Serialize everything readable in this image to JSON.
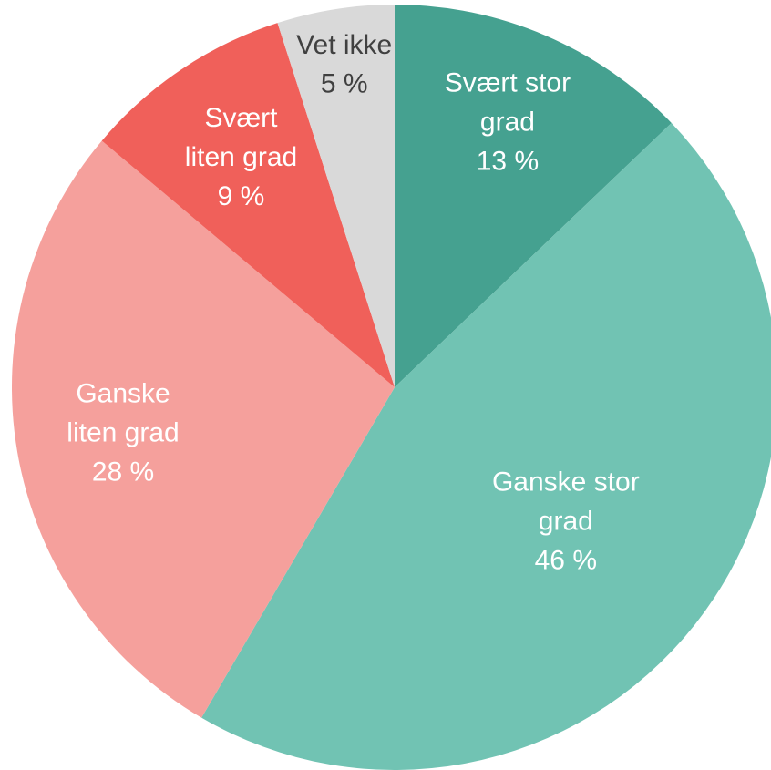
{
  "chart_data": {
    "type": "pie",
    "categories": [
      "Svært stor grad",
      "Ganske stor grad",
      "Ganske liten grad",
      "Svært liten grad",
      "Vet ikke"
    ],
    "values": [
      13,
      46,
      28,
      9,
      5
    ],
    "value_labels": [
      "13 %",
      "46 %",
      "28 %",
      "9 %",
      "5 %"
    ],
    "colors": [
      "#45a190",
      "#71c3b3",
      "#f5a09c",
      "#f0605a",
      "#d9d9d9"
    ]
  }
}
